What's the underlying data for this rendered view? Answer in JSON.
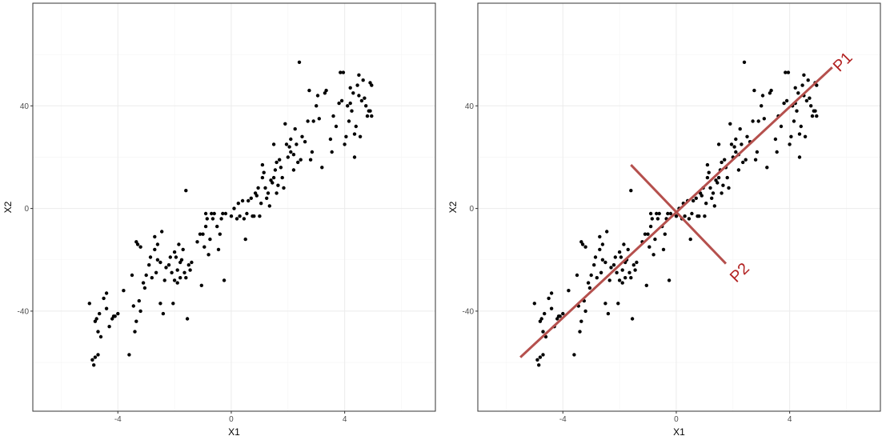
{
  "colors": {
    "panel_border": "#333333",
    "grid_major": "#ebebeb",
    "grid_minor": "#f5f5f5",
    "point": "#000000",
    "pc_line": "#b5504d",
    "pc_label": "#b22222"
  },
  "chart_data": [
    {
      "type": "scatter",
      "xlabel": "X1",
      "ylabel": "X2",
      "xlim": [
        -7,
        7.2
      ],
      "ylim": [
        -79,
        80
      ],
      "xticks": [
        -4,
        0,
        4
      ],
      "yticks": [
        -40,
        0,
        40
      ],
      "xtick_labels": [
        "-4",
        "0",
        "4"
      ],
      "ytick_labels": [
        "-40",
        "0",
        "40"
      ],
      "grid": true,
      "legend": "none",
      "points": [
        [
          -5.0,
          -37
        ],
        [
          -4.9,
          -59
        ],
        [
          -4.85,
          -61
        ],
        [
          -4.8,
          -58
        ],
        [
          -4.7,
          -57
        ],
        [
          -4.8,
          -44
        ],
        [
          -4.75,
          -43
        ],
        [
          -4.7,
          -48
        ],
        [
          -4.6,
          -50
        ],
        [
          -4.65,
          -41
        ],
        [
          -4.5,
          -35
        ],
        [
          -4.4,
          -33
        ],
        [
          -4.4,
          -39
        ],
        [
          -4.3,
          -46
        ],
        [
          -4.2,
          -43
        ],
        [
          -4.15,
          -42
        ],
        [
          -4.1,
          -42
        ],
        [
          -4.0,
          -41
        ],
        [
          -3.8,
          -32
        ],
        [
          -3.6,
          -57
        ],
        [
          -3.5,
          -26
        ],
        [
          -3.45,
          -38
        ],
        [
          -3.4,
          -48
        ],
        [
          -3.35,
          -44
        ],
        [
          -3.35,
          -13
        ],
        [
          -3.3,
          -14
        ],
        [
          -3.25,
          -36
        ],
        [
          -3.2,
          -40
        ],
        [
          -3.2,
          -15
        ],
        [
          -3.1,
          -29
        ],
        [
          -3.05,
          -31
        ],
        [
          -3.0,
          -26
        ],
        [
          -2.9,
          -22
        ],
        [
          -2.85,
          -19
        ],
        [
          -2.8,
          -27
        ],
        [
          -2.7,
          -11
        ],
        [
          -2.7,
          -16
        ],
        [
          -2.65,
          -25
        ],
        [
          -2.6,
          -20
        ],
        [
          -2.6,
          -14
        ],
        [
          -2.5,
          -21
        ],
        [
          -2.5,
          -37
        ],
        [
          -2.45,
          -9
        ],
        [
          -2.4,
          -41
        ],
        [
          -2.35,
          -28
        ],
        [
          -2.3,
          -23
        ],
        [
          -2.2,
          -22
        ],
        [
          -2.15,
          -19
        ],
        [
          -2.1,
          -25
        ],
        [
          -2.05,
          -37
        ],
        [
          -2.0,
          -28
        ],
        [
          -2.0,
          -17
        ],
        [
          -1.95,
          -19
        ],
        [
          -1.9,
          -24
        ],
        [
          -1.9,
          -29
        ],
        [
          -1.85,
          -14
        ],
        [
          -1.8,
          -27
        ],
        [
          -1.8,
          -21
        ],
        [
          -1.75,
          -20
        ],
        [
          -1.7,
          -16
        ],
        [
          -1.65,
          -25
        ],
        [
          -1.6,
          -27
        ],
        [
          -1.6,
          7
        ],
        [
          -1.55,
          -43
        ],
        [
          -1.5,
          -22
        ],
        [
          -1.45,
          -24
        ],
        [
          -1.4,
          -21
        ],
        [
          -1.2,
          -13
        ],
        [
          -1.1,
          -10
        ],
        [
          -1.05,
          -30
        ],
        [
          -1.0,
          -10
        ],
        [
          -0.95,
          -15
        ],
        [
          -0.9,
          -7
        ],
        [
          -0.9,
          -2
        ],
        [
          -0.85,
          -4
        ],
        [
          -0.8,
          -18
        ],
        [
          -0.75,
          -12
        ],
        [
          -0.7,
          -2
        ],
        [
          -0.65,
          -4
        ],
        [
          -0.6,
          -2
        ],
        [
          -0.5,
          -7
        ],
        [
          -0.45,
          -16
        ],
        [
          -0.4,
          -10
        ],
        [
          -0.35,
          -4
        ],
        [
          -0.3,
          -2
        ],
        [
          -0.25,
          -28
        ],
        [
          -0.2,
          -2
        ],
        [
          0.0,
          -3
        ],
        [
          0.1,
          0
        ],
        [
          0.2,
          -4
        ],
        [
          0.25,
          2
        ],
        [
          0.3,
          -3
        ],
        [
          0.4,
          3
        ],
        [
          0.45,
          -4
        ],
        [
          0.5,
          -12
        ],
        [
          0.55,
          -2
        ],
        [
          0.6,
          3
        ],
        [
          0.7,
          4
        ],
        [
          0.75,
          -3
        ],
        [
          0.8,
          -3
        ],
        [
          0.85,
          6
        ],
        [
          0.9,
          5
        ],
        [
          0.95,
          8
        ],
        [
          1.0,
          -3
        ],
        [
          1.05,
          2
        ],
        [
          1.1,
          12
        ],
        [
          1.1,
          17
        ],
        [
          1.15,
          14
        ],
        [
          1.2,
          8
        ],
        [
          1.25,
          4
        ],
        [
          1.3,
          6
        ],
        [
          1.35,
          1
        ],
        [
          1.4,
          11
        ],
        [
          1.45,
          10
        ],
        [
          1.5,
          12
        ],
        [
          1.5,
          25
        ],
        [
          1.55,
          15
        ],
        [
          1.6,
          18
        ],
        [
          1.6,
          6
        ],
        [
          1.65,
          9
        ],
        [
          1.7,
          19
        ],
        [
          1.75,
          16
        ],
        [
          1.8,
          12
        ],
        [
          1.85,
          8
        ],
        [
          1.9,
          33
        ],
        [
          1.95,
          25
        ],
        [
          2.0,
          20
        ],
        [
          2.05,
          24
        ],
        [
          2.1,
          27
        ],
        [
          2.1,
          22
        ],
        [
          2.2,
          15
        ],
        [
          2.2,
          21
        ],
        [
          2.25,
          31
        ],
        [
          2.3,
          25
        ],
        [
          2.35,
          18
        ],
        [
          2.4,
          57
        ],
        [
          2.45,
          19
        ],
        [
          2.5,
          28
        ],
        [
          2.6,
          26
        ],
        [
          2.7,
          34
        ],
        [
          2.75,
          46
        ],
        [
          2.8,
          19
        ],
        [
          2.85,
          22
        ],
        [
          2.9,
          34
        ],
        [
          3.0,
          40
        ],
        [
          3.05,
          44
        ],
        [
          3.1,
          35
        ],
        [
          3.2,
          16
        ],
        [
          3.3,
          45
        ],
        [
          3.35,
          46
        ],
        [
          3.5,
          27
        ],
        [
          3.55,
          22
        ],
        [
          3.6,
          36
        ],
        [
          3.7,
          32
        ],
        [
          3.8,
          41
        ],
        [
          3.85,
          53
        ],
        [
          3.9,
          42
        ],
        [
          3.95,
          53
        ],
        [
          4.0,
          25
        ],
        [
          4.05,
          28
        ],
        [
          4.1,
          40
        ],
        [
          4.15,
          34
        ],
        [
          4.2,
          41
        ],
        [
          4.2,
          47
        ],
        [
          4.25,
          38
        ],
        [
          4.3,
          45
        ],
        [
          4.35,
          29
        ],
        [
          4.35,
          20
        ],
        [
          4.4,
          32
        ],
        [
          4.45,
          48
        ],
        [
          4.5,
          52
        ],
        [
          4.5,
          44
        ],
        [
          4.55,
          28
        ],
        [
          4.6,
          42
        ],
        [
          4.65,
          50
        ],
        [
          4.7,
          43
        ],
        [
          4.75,
          40
        ],
        [
          4.8,
          36
        ],
        [
          4.85,
          38
        ],
        [
          4.9,
          38
        ],
        [
          4.95,
          36
        ],
        [
          4.9,
          49
        ],
        [
          4.95,
          48
        ]
      ]
    },
    {
      "type": "scatter",
      "xlabel": "X1",
      "ylabel": "X2",
      "xlim": [
        -7,
        7.2
      ],
      "ylim": [
        -79,
        80
      ],
      "xticks": [
        -4,
        0,
        4
      ],
      "yticks": [
        -40,
        0,
        40
      ],
      "xtick_labels": [
        "-4",
        "0",
        "4"
      ],
      "ytick_labels": [
        "-40",
        "0",
        "40"
      ],
      "grid": true,
      "legend": "none",
      "points": "same as panel 1",
      "annotations": [
        {
          "label": "P1",
          "x1": -5.5,
          "y1": -58,
          "x2": 5.5,
          "y2": 55
        },
        {
          "label": "P2",
          "x1": -1.6,
          "y1": 17,
          "x2": 1.75,
          "y2": -21.5
        }
      ]
    }
  ]
}
